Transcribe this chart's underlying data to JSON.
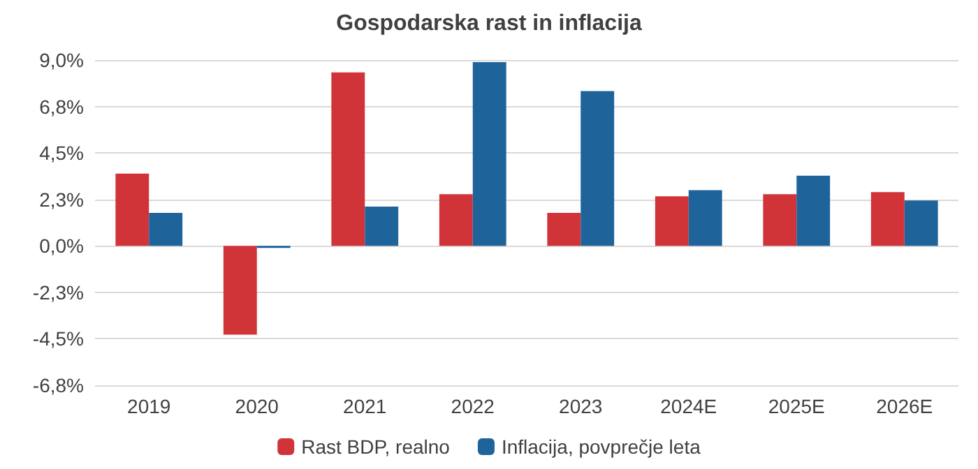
{
  "chart_data": {
    "type": "bar",
    "title": "Gospodarska rast in inflacija",
    "categories": [
      "2019",
      "2020",
      "2021",
      "2022",
      "2023",
      "2024E",
      "2025E",
      "2026E"
    ],
    "series": [
      {
        "name": "Rast BDP, realno",
        "color": "#d13438",
        "values": [
          3.5,
          -4.3,
          8.4,
          2.5,
          1.6,
          2.4,
          2.5,
          2.6
        ]
      },
      {
        "name": "Inflacija, povprečje leta",
        "color": "#1f639b",
        "values": [
          1.6,
          -0.1,
          1.9,
          8.9,
          7.5,
          2.7,
          3.4,
          2.2
        ]
      }
    ],
    "ylim": [
      -6.75,
      9
    ],
    "yticks": [
      {
        "value": -6.75,
        "label": "-6,8%"
      },
      {
        "value": -4.5,
        "label": "-4,5%"
      },
      {
        "value": -2.25,
        "label": "-2,3%"
      },
      {
        "value": 0,
        "label": "0,0%"
      },
      {
        "value": 2.25,
        "label": "2,3%"
      },
      {
        "value": 4.5,
        "label": "4,5%"
      },
      {
        "value": 6.75,
        "label": "6,8%"
      },
      {
        "value": 9,
        "label": "9,0%"
      }
    ],
    "grid": "y",
    "legend": "bottom"
  }
}
